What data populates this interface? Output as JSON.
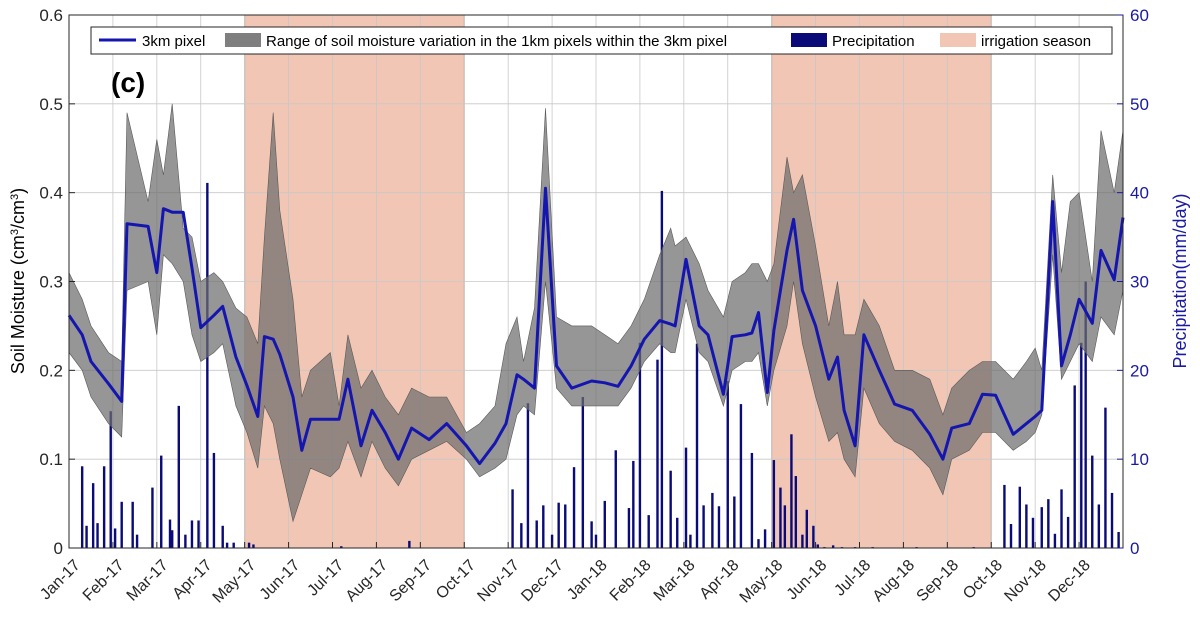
{
  "chart_data": {
    "type": "line",
    "panel_label": "(c)",
    "ylabel_left": "Soil Moisture (cm³/cm³)",
    "ylabel_right": "Precipitation(mm/day)",
    "ylim_left": [
      0,
      0.6
    ],
    "ylim_right": [
      0,
      60
    ],
    "yticks_left": [
      "0",
      "0.1",
      "0.2",
      "0.3",
      "0.4",
      "0.5",
      "0.6"
    ],
    "yticks_right": [
      "0",
      "10",
      "20",
      "30",
      "40",
      "50",
      "60"
    ],
    "x_months": [
      "Jan-17",
      "Feb-17",
      "Mar-17",
      "Apr-17",
      "May-17",
      "Jun-17",
      "Jul-17",
      "Aug-17",
      "Sep-17",
      "Oct-17",
      "Nov-17",
      "Dec-17",
      "Jan-18",
      "Feb-18",
      "Mar-18",
      "Apr-18",
      "May-18",
      "Jun-18",
      "Jul-18",
      "Aug-18",
      "Sep-18",
      "Oct-18",
      "Nov-18",
      "Dec-18"
    ],
    "xlim_months": [
      0,
      24
    ],
    "grid": true,
    "legend": {
      "placement": "top",
      "entries": [
        {
          "label": "3km pixel",
          "color": "#1515b0"
        },
        {
          "label": "Range of soil moisture variation in the 1km pixels within the 3km pixel",
          "color": "#7f7f7f"
        },
        {
          "label": "Precipitation",
          "color": "#0a0a78"
        },
        {
          "label": "irrigation season",
          "color": "#f2c6b4"
        }
      ]
    },
    "irrigation_seasons": [
      [
        4.0,
        9.0
      ],
      [
        16.0,
        21.0
      ]
    ],
    "soil_moisture_3km": {
      "x": [
        0.0,
        0.3,
        0.5,
        0.9,
        1.2,
        1.32,
        1.8,
        2.0,
        2.15,
        2.35,
        2.6,
        2.8,
        3.0,
        3.3,
        3.5,
        3.8,
        4.05,
        4.3,
        4.45,
        4.65,
        4.8,
        5.1,
        5.3,
        5.5,
        5.95,
        6.15,
        6.35,
        6.65,
        6.9,
        7.2,
        7.5,
        7.8,
        8.2,
        8.6,
        9.05,
        9.35,
        9.7,
        9.95,
        10.2,
        10.35,
        10.6,
        10.85,
        11.1,
        11.45,
        11.9,
        12.2,
        12.5,
        12.8,
        13.1,
        13.45,
        13.7,
        13.8,
        14.05,
        14.35,
        14.55,
        14.9,
        15.1,
        15.4,
        15.55,
        15.7,
        15.9,
        16.05,
        16.35,
        16.5,
        16.7,
        17.0,
        17.3,
        17.5,
        17.65,
        17.9,
        18.1,
        18.45,
        18.8,
        19.2,
        19.6,
        19.9,
        20.1,
        20.5,
        20.8,
        21.1,
        21.5,
        21.8,
        22.0,
        22.15,
        22.4,
        22.6,
        22.8,
        23.0,
        23.3,
        23.5,
        23.8,
        24.0
      ],
      "y": [
        0.262,
        0.24,
        0.21,
        0.185,
        0.165,
        0.365,
        0.362,
        0.31,
        0.382,
        0.378,
        0.378,
        0.315,
        0.248,
        0.262,
        0.272,
        0.215,
        0.183,
        0.148,
        0.238,
        0.235,
        0.218,
        0.17,
        0.11,
        0.145,
        0.145,
        0.145,
        0.19,
        0.115,
        0.155,
        0.13,
        0.1,
        0.135,
        0.122,
        0.14,
        0.115,
        0.095,
        0.118,
        0.14,
        0.195,
        0.19,
        0.18,
        0.405,
        0.205,
        0.18,
        0.188,
        0.186,
        0.182,
        0.205,
        0.235,
        0.256,
        0.252,
        0.25,
        0.325,
        0.25,
        0.24,
        0.173,
        0.238,
        0.24,
        0.242,
        0.265,
        0.175,
        0.245,
        0.335,
        0.37,
        0.29,
        0.25,
        0.19,
        0.215,
        0.155,
        0.115,
        0.24,
        0.2,
        0.162,
        0.155,
        0.128,
        0.1,
        0.135,
        0.14,
        0.173,
        0.172,
        0.128,
        0.14,
        0.148,
        0.155,
        0.39,
        0.205,
        0.24,
        0.28,
        0.253,
        0.335,
        0.302,
        0.372
      ]
    },
    "range_upper": [
      0.31,
      0.28,
      0.25,
      0.22,
      0.21,
      0.49,
      0.39,
      0.46,
      0.42,
      0.5,
      0.36,
      0.35,
      0.3,
      0.31,
      0.3,
      0.27,
      0.26,
      0.23,
      0.35,
      0.49,
      0.38,
      0.28,
      0.17,
      0.2,
      0.22,
      0.16,
      0.24,
      0.18,
      0.2,
      0.17,
      0.15,
      0.18,
      0.17,
      0.17,
      0.13,
      0.14,
      0.16,
      0.23,
      0.26,
      0.21,
      0.27,
      0.495,
      0.26,
      0.25,
      0.25,
      0.24,
      0.23,
      0.25,
      0.28,
      0.33,
      0.36,
      0.34,
      0.35,
      0.32,
      0.29,
      0.26,
      0.3,
      0.31,
      0.32,
      0.32,
      0.3,
      0.32,
      0.44,
      0.4,
      0.42,
      0.34,
      0.25,
      0.3,
      0.24,
      0.24,
      0.28,
      0.25,
      0.2,
      0.2,
      0.19,
      0.15,
      0.18,
      0.2,
      0.21,
      0.21,
      0.19,
      0.21,
      0.225,
      0.2,
      0.42,
      0.31,
      0.39,
      0.4,
      0.3,
      0.47,
      0.4,
      0.47
    ],
    "range_lower": [
      0.22,
      0.2,
      0.17,
      0.14,
      0.125,
      0.29,
      0.3,
      0.24,
      0.33,
      0.32,
      0.3,
      0.24,
      0.21,
      0.22,
      0.23,
      0.16,
      0.13,
      0.09,
      0.16,
      0.14,
      0.1,
      0.03,
      0.06,
      0.09,
      0.08,
      0.09,
      0.12,
      0.08,
      0.12,
      0.09,
      0.07,
      0.1,
      0.11,
      0.12,
      0.1,
      0.08,
      0.09,
      0.1,
      0.15,
      0.16,
      0.15,
      0.3,
      0.18,
      0.16,
      0.16,
      0.16,
      0.16,
      0.18,
      0.21,
      0.23,
      0.22,
      0.22,
      0.28,
      0.22,
      0.21,
      0.16,
      0.2,
      0.21,
      0.21,
      0.22,
      0.16,
      0.2,
      0.25,
      0.3,
      0.23,
      0.17,
      0.12,
      0.13,
      0.1,
      0.08,
      0.18,
      0.14,
      0.12,
      0.11,
      0.09,
      0.06,
      0.1,
      0.11,
      0.13,
      0.13,
      0.11,
      0.12,
      0.13,
      0.15,
      0.33,
      0.19,
      0.21,
      0.23,
      0.21,
      0.26,
      0.24,
      0.29
    ],
    "precipitation": {
      "x": [
        0.3,
        0.4,
        0.55,
        0.65,
        0.8,
        0.95,
        1.05,
        1.2,
        1.45,
        1.55,
        1.9,
        2.1,
        2.3,
        2.35,
        2.5,
        2.65,
        2.8,
        2.95,
        3.15,
        3.3,
        3.5,
        3.6,
        3.75,
        4.1,
        4.2,
        6.2,
        7.75,
        10.1,
        10.3,
        10.45,
        10.65,
        10.8,
        11.0,
        11.15,
        11.3,
        11.5,
        11.7,
        11.9,
        12.0,
        12.2,
        12.45,
        12.75,
        12.85,
        13.0,
        13.2,
        13.4,
        13.5,
        13.7,
        13.85,
        14.05,
        14.15,
        14.3,
        14.45,
        14.65,
        14.8,
        15.0,
        15.15,
        15.3,
        15.55,
        15.7,
        15.85,
        16.05,
        16.2,
        16.3,
        16.45,
        16.55,
        16.7,
        16.8,
        16.95,
        17.05,
        17.2,
        17.4,
        17.6,
        17.9,
        18.3,
        19.3,
        20.6,
        21.3,
        21.45,
        21.65,
        21.8,
        21.95,
        22.15,
        22.3,
        22.45,
        22.6,
        22.75,
        22.9,
        23.05,
        23.15,
        23.3,
        23.45,
        23.6,
        23.75,
        23.9
      ],
      "y": [
        9.2,
        2.5,
        7.3,
        2.8,
        9.2,
        15.4,
        2.2,
        5.2,
        5.2,
        1.5,
        6.8,
        10.4,
        3.2,
        2.0,
        16.0,
        1.5,
        3.1,
        3.1,
        41.1,
        10.7,
        2.5,
        0.6,
        0.6,
        0.6,
        0.4,
        0.2,
        0.8,
        6.6,
        2.8,
        16.3,
        3.1,
        4.8,
        1.5,
        5.1,
        4.9,
        9.1,
        17.0,
        3.0,
        1.5,
        5.3,
        11.0,
        4.5,
        9.8,
        23.1,
        3.7,
        21.2,
        40.2,
        8.7,
        3.4,
        11.3,
        1.5,
        23.0,
        4.8,
        6.2,
        4.7,
        18.8,
        5.8,
        16.2,
        10.7,
        1.0,
        2.1,
        9.9,
        6.8,
        4.8,
        12.8,
        8.1,
        1.5,
        4.3,
        2.5,
        0.4,
        0.1,
        0.3,
        0.1,
        0.1,
        0.1,
        0.1,
        0.1,
        7.1,
        2.7,
        6.9,
        4.9,
        3.4,
        4.6,
        5.5,
        1.6,
        6.6,
        3.5,
        18.3,
        23.1,
        30.0,
        10.4,
        4.9,
        15.8,
        6.2,
        1.8
      ]
    }
  }
}
